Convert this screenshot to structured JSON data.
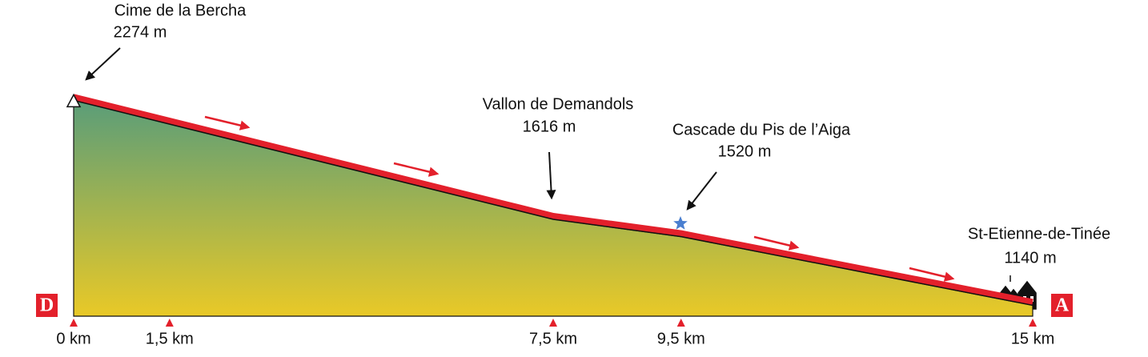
{
  "chart_data": {
    "type": "area",
    "x": [
      0,
      7.5,
      9.5,
      15
    ],
    "series": [
      {
        "color": "#e3202b",
        "values": [
          2274,
          1616,
          1520,
          1140
        ],
        "value_labels": [
          "2274 m",
          "1616 m",
          "1520 m",
          "1140 m"
        ]
      }
    ],
    "point_names": [
      "Cime de la Bercha",
      "Vallon de Demandols",
      "Cascade du Pis de l’Aiga",
      "St-Etienne-de-Tinée"
    ],
    "xlim": [
      0,
      15
    ],
    "ylim": [
      1080,
      2280
    ],
    "xticks": [
      {
        "value": 0,
        "label": "0 km"
      },
      {
        "value": 1.5,
        "label": "1,5 km"
      },
      {
        "value": 7.5,
        "label": "7,5 km"
      },
      {
        "value": 9.5,
        "label": "9,5 km"
      },
      {
        "value": 15,
        "label": "15 km"
      }
    ],
    "start_label": "D",
    "end_label": "A",
    "fill_top": "#5a9d79",
    "fill_bottom": "#e9c927"
  }
}
